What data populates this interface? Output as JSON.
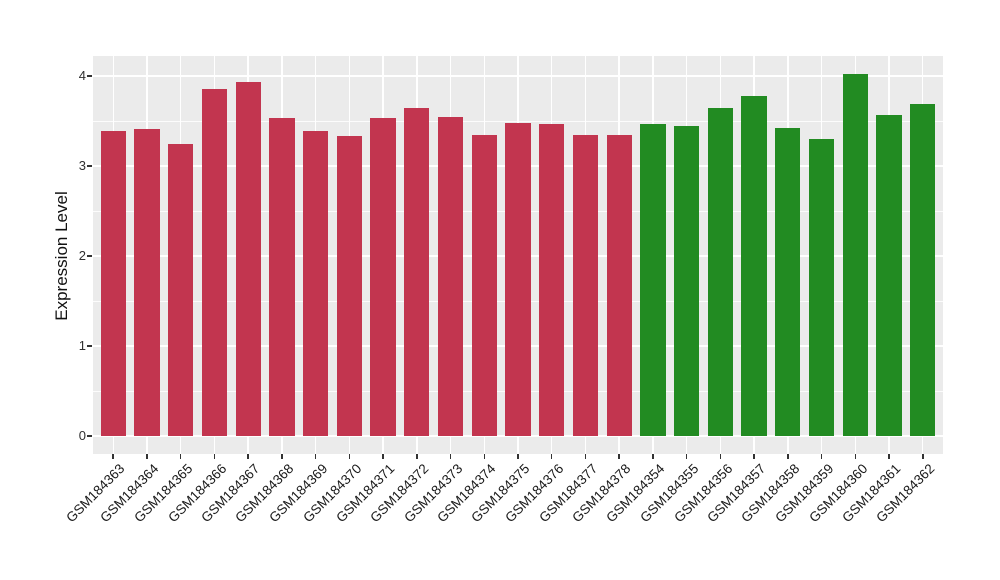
{
  "chart_data": {
    "type": "bar",
    "title": "",
    "xlabel": "",
    "ylabel": "Expression Level",
    "yticks": [
      0,
      1,
      2,
      3,
      4
    ],
    "ylim": [
      -0.2,
      4.22
    ],
    "minor_grid_step": 0.5,
    "grid": true,
    "legend_position": "none",
    "panel_background": "#EBEBEB",
    "grid_color": "#FFFFFF",
    "tick_color": "#333333",
    "group_colors": {
      "red": "#C2354F",
      "green": "#228B22"
    },
    "bars": [
      {
        "label": "GSM184363",
        "value": 3.39,
        "color": "#C2354F"
      },
      {
        "label": "GSM184364",
        "value": 3.41,
        "color": "#C2354F"
      },
      {
        "label": "GSM184365",
        "value": 3.25,
        "color": "#C2354F"
      },
      {
        "label": "GSM184366",
        "value": 3.86,
        "color": "#C2354F"
      },
      {
        "label": "GSM184367",
        "value": 3.93,
        "color": "#C2354F"
      },
      {
        "label": "GSM184368",
        "value": 3.53,
        "color": "#C2354F"
      },
      {
        "label": "GSM184369",
        "value": 3.39,
        "color": "#C2354F"
      },
      {
        "label": "GSM184370",
        "value": 3.33,
        "color": "#C2354F"
      },
      {
        "label": "GSM184371",
        "value": 3.53,
        "color": "#C2354F"
      },
      {
        "label": "GSM184372",
        "value": 3.65,
        "color": "#C2354F"
      },
      {
        "label": "GSM184373",
        "value": 3.55,
        "color": "#C2354F"
      },
      {
        "label": "GSM184374",
        "value": 3.34,
        "color": "#C2354F"
      },
      {
        "label": "GSM184375",
        "value": 3.48,
        "color": "#C2354F"
      },
      {
        "label": "GSM184376",
        "value": 3.47,
        "color": "#C2354F"
      },
      {
        "label": "GSM184377",
        "value": 3.34,
        "color": "#C2354F"
      },
      {
        "label": "GSM184378",
        "value": 3.35,
        "color": "#C2354F"
      },
      {
        "label": "GSM184354",
        "value": 3.47,
        "color": "#228B22"
      },
      {
        "label": "GSM184355",
        "value": 3.45,
        "color": "#228B22"
      },
      {
        "label": "GSM184356",
        "value": 3.65,
        "color": "#228B22"
      },
      {
        "label": "GSM184357",
        "value": 3.78,
        "color": "#228B22"
      },
      {
        "label": "GSM184358",
        "value": 3.42,
        "color": "#228B22"
      },
      {
        "label": "GSM184359",
        "value": 3.3,
        "color": "#228B22"
      },
      {
        "label": "GSM184360",
        "value": 4.02,
        "color": "#228B22"
      },
      {
        "label": "GSM184361",
        "value": 3.57,
        "color": "#228B22"
      },
      {
        "label": "GSM184362",
        "value": 3.69,
        "color": "#228B22"
      }
    ]
  }
}
